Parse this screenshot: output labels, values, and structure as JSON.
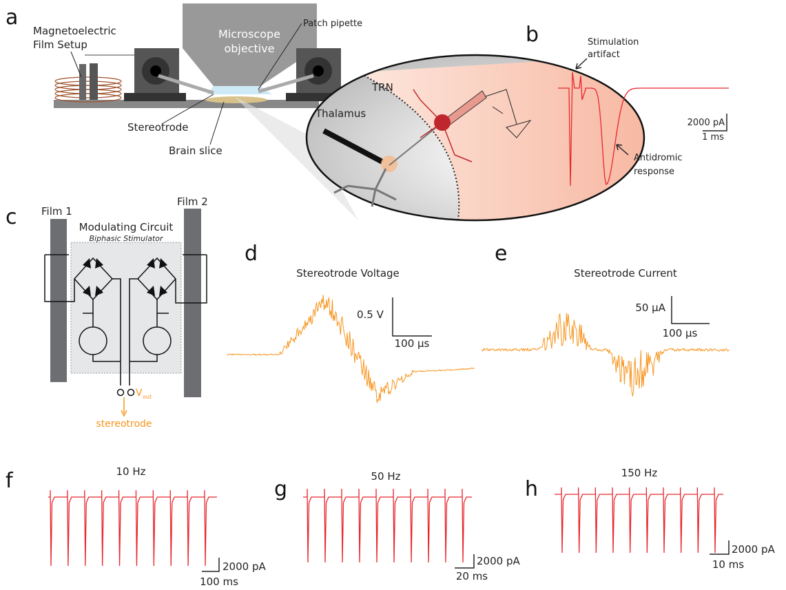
{
  "panels": {
    "a": {
      "label": "a",
      "setup": [
        "Magnetoelectric",
        "Film Setup"
      ],
      "objective": [
        "Microscope",
        "objective"
      ],
      "pipette": "Patch pipette",
      "stereotrode": "Stereotrode",
      "slice": "Brain slice",
      "trn": "TRN",
      "thalamus": "Thalamus"
    },
    "b": {
      "label": "b",
      "artifact": [
        "Stimulation",
        "artifact"
      ],
      "scale_y": "2000 pA",
      "scale_x": "1 ms",
      "response": [
        "Antidromic",
        "response"
      ]
    },
    "c": {
      "label": "c",
      "film1": "Film 1",
      "film2": "Film 2",
      "circuit": "Modulating Circuit",
      "subtitle": "Biphasic Stimulator",
      "vout": "V",
      "vout_sub": "out",
      "output": "stereotrode"
    },
    "d": {
      "label": "d",
      "title": "Stereotrode Voltage",
      "scale_y": "0.5 V",
      "scale_x": "100 µs"
    },
    "e": {
      "label": "e",
      "title": "Stereotrode Current",
      "scale_y": "50 µA",
      "scale_x": "100 µs"
    },
    "f": {
      "label": "f",
      "title": "10 Hz",
      "scale_y": "2000 pA",
      "scale_x": "100 ms"
    },
    "g": {
      "label": "g",
      "title": "50 Hz",
      "scale_y": "2000 pA",
      "scale_x": "20 ms"
    },
    "h": {
      "label": "h",
      "title": "150 Hz",
      "scale_y": "2000 pA",
      "scale_x": "10 ms"
    }
  }
}
